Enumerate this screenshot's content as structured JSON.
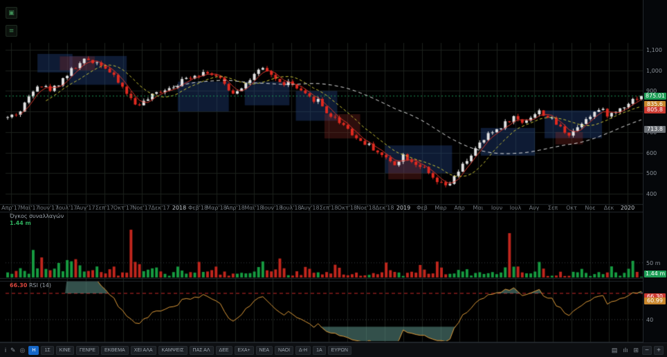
{
  "app": {
    "background": "#000000"
  },
  "price_axis": {
    "ticks": [
      {
        "label": "1,100",
        "price": 1100
      },
      {
        "label": "1,000",
        "price": 1000
      },
      {
        "label": "900",
        "price": 900
      },
      {
        "label": "800",
        "price": 800
      },
      {
        "label": "700",
        "price": 700
      },
      {
        "label": "600",
        "price": 600
      },
      {
        "label": "500",
        "price": 500
      },
      {
        "label": "400",
        "price": 400
      }
    ],
    "badges": [
      {
        "label": "875.01",
        "price": 875.01,
        "color": "#1e9e57"
      },
      {
        "label": "835.6",
        "price": 835.6,
        "color": "#c9872d"
      },
      {
        "label": "805.8",
        "price": 805.8,
        "color": "#cc3b33"
      },
      {
        "label": "713.8",
        "price": 713.8,
        "color": "#6b7076"
      }
    ]
  },
  "time_axis": {
    "labels": [
      "Απρ'17",
      "Μαϊ'17",
      "Ιουν'17",
      "Ιουλ'17",
      "Αυγ'17",
      "Σεπ'17",
      "Οκτ'17",
      "Νοε'17",
      "Δεκ'17",
      "2018",
      "Φεβ'18",
      "Μαρ'18",
      "Απρ'18",
      "Μαϊ'18",
      "Ιουν'18",
      "Ιουλ'18",
      "Αυγ'18",
      "Σεπ'18",
      "Οκτ'18",
      "Νοε'18",
      "Δεκ'18",
      "2019",
      "Φεβ",
      "Μαρ",
      "Απρ",
      "Μαι",
      "Ιουν",
      "Ιουλ",
      "Αυγ",
      "Σεπ",
      "Οκτ",
      "Νοε",
      "Δεκ",
      "2020"
    ],
    "year_labels": [
      "2018",
      "2019",
      "2020"
    ]
  },
  "volume_pane": {
    "label": "Όγκος συναλλαγών",
    "value": "1.44 m",
    "value_color": "#2fae5d",
    "scale_label": "50 m",
    "scale_value": 50,
    "badge": {
      "label": "1.44 m",
      "color": "#1e9e57",
      "value": 1.44
    }
  },
  "rsi_pane": {
    "value": "66.30",
    "label": "RSI (14)",
    "value_color": "#d8453c",
    "lower_tick": {
      "label": "40",
      "value": 40
    },
    "badges": [
      {
        "label": "66.30",
        "color": "#cc3b33",
        "value": 66.3
      },
      {
        "label": "60.99",
        "color": "#c9872d",
        "value": 60.99
      }
    ]
  },
  "top_icons": [
    {
      "name": "logo-icon",
      "glyph": "▣"
    },
    {
      "name": "screenshot-icon",
      "glyph": "≡"
    }
  ],
  "toolbar": {
    "left_icons": [
      {
        "name": "info-icon",
        "glyph": "i"
      },
      {
        "name": "draw-icon",
        "glyph": "✎"
      },
      {
        "name": "target-icon",
        "glyph": "◎"
      }
    ],
    "buttons": [
      {
        "label": "Η",
        "active": true
      },
      {
        "label": "1Σ",
        "active": false
      },
      {
        "label": "ΚΙΝΕ",
        "active": false
      },
      {
        "label": "ΓΕΝΡΕ",
        "active": false
      },
      {
        "label": "ΕΚΘΕΜΑ",
        "active": false
      },
      {
        "label": "ΧΕΙ ΑΛΑ",
        "active": false
      },
      {
        "label": "ΚΑΜΨΕΙΣ",
        "active": false
      },
      {
        "label": "ΠΑΣ ΑΛ",
        "active": false
      },
      {
        "label": "ΔΕΕ",
        "active": false
      },
      {
        "label": "ΕΧΑ+",
        "active": false
      },
      {
        "label": "ΝΕΑ",
        "active": false
      },
      {
        "label": "ΝΑΟΙ",
        "active": false
      },
      {
        "label": "Δ-Η",
        "active": false
      },
      {
        "label": "1Α",
        "active": false
      },
      {
        "label": "ΕΥΡΩΝ",
        "active": false
      }
    ],
    "right_icons": [
      {
        "name": "candlestick-style-icon",
        "glyph": "▤"
      },
      {
        "name": "bar-style-icon",
        "glyph": "ılı"
      },
      {
        "name": "compare-icon",
        "glyph": "⊞"
      }
    ],
    "zoom_out": "−",
    "zoom_in": "+"
  },
  "chart_data": {
    "type": "candlestick",
    "title": "",
    "price_range": [
      400,
      1100
    ],
    "price_gridlines": [
      400,
      500,
      600,
      700,
      800,
      900,
      1000,
      1100
    ],
    "candle_count": 150,
    "last_close": 875.01,
    "noise_seed": 42,
    "noise_amplitude": 13,
    "price_anchors": [
      [
        0,
        770
      ],
      [
        0.02,
        800
      ],
      [
        0.045,
        935
      ],
      [
        0.07,
        905
      ],
      [
        0.1,
        1000
      ],
      [
        0.125,
        1055
      ],
      [
        0.15,
        1030
      ],
      [
        0.165,
        975
      ],
      [
        0.185,
        905
      ],
      [
        0.2,
        835
      ],
      [
        0.215,
        845
      ],
      [
        0.24,
        900
      ],
      [
        0.265,
        930
      ],
      [
        0.29,
        975
      ],
      [
        0.315,
        995
      ],
      [
        0.335,
        955
      ],
      [
        0.355,
        890
      ],
      [
        0.375,
        935
      ],
      [
        0.4,
        1005
      ],
      [
        0.415,
        985
      ],
      [
        0.43,
        935
      ],
      [
        0.445,
        940
      ],
      [
        0.46,
        900
      ],
      [
        0.475,
        865
      ],
      [
        0.49,
        855
      ],
      [
        0.505,
        790
      ],
      [
        0.52,
        760
      ],
      [
        0.535,
        725
      ],
      [
        0.55,
        670
      ],
      [
        0.565,
        645
      ],
      [
        0.58,
        615
      ],
      [
        0.595,
        575
      ],
      [
        0.61,
        545
      ],
      [
        0.625,
        590
      ],
      [
        0.64,
        555
      ],
      [
        0.655,
        530
      ],
      [
        0.665,
        490
      ],
      [
        0.675,
        460
      ],
      [
        0.69,
        435
      ],
      [
        0.7,
        455
      ],
      [
        0.71,
        500
      ],
      [
        0.72,
        545
      ],
      [
        0.73,
        585
      ],
      [
        0.745,
        640
      ],
      [
        0.76,
        690
      ],
      [
        0.775,
        720
      ],
      [
        0.79,
        755
      ],
      [
        0.8,
        775
      ],
      [
        0.81,
        745
      ],
      [
        0.825,
        775
      ],
      [
        0.84,
        800
      ],
      [
        0.85,
        780
      ],
      [
        0.86,
        755
      ],
      [
        0.875,
        715
      ],
      [
        0.885,
        690
      ],
      [
        0.9,
        725
      ],
      [
        0.91,
        765
      ],
      [
        0.925,
        795
      ],
      [
        0.935,
        810
      ],
      [
        0.95,
        780
      ],
      [
        0.96,
        800
      ],
      [
        0.975,
        835
      ],
      [
        0.99,
        865
      ],
      [
        1.0,
        875
      ]
    ],
    "moving_averages": [
      {
        "period": 4,
        "color": "#d6352b",
        "dash": []
      },
      {
        "period": 10,
        "color": "#cfc838",
        "dash": [
          4,
          3
        ]
      },
      {
        "period": 40,
        "color": "#e0e0e0",
        "dash": [
          5,
          4
        ]
      }
    ],
    "zones": {
      "blue": [
        [
          0.05,
          0.105,
          990,
          1080
        ],
        [
          0.1,
          0.19,
          930,
          1070
        ],
        [
          0.27,
          0.35,
          800,
          945
        ],
        [
          0.375,
          0.445,
          830,
          945
        ],
        [
          0.455,
          0.52,
          755,
          900
        ],
        [
          0.595,
          0.7,
          500,
          635
        ],
        [
          0.745,
          0.83,
          585,
          720
        ],
        [
          0.845,
          0.935,
          670,
          805
        ]
      ],
      "red": [
        [
          0.085,
          0.14,
          1000,
          1068
        ],
        [
          0.5,
          0.556,
          669,
          787
        ],
        [
          0.6,
          0.652,
          470,
          565
        ],
        [
          0.862,
          0.905,
          640,
          700
        ]
      ],
      "blue_color": "rgba(38,72,138,0.38)",
      "red_color": "rgba(150,45,40,0.30)"
    },
    "volume": {
      "max": 220,
      "unit": "m",
      "last_value": 1.44,
      "up_color": "#169a40",
      "down_color": "#c0261d",
      "spikes": [
        [
          0.02,
          2.5
        ],
        [
          0.04,
          4
        ],
        [
          0.055,
          5
        ],
        [
          0.075,
          4.5
        ],
        [
          0.09,
          3
        ],
        [
          0.105,
          3.5
        ],
        [
          0.12,
          2.5
        ],
        [
          0.14,
          2
        ],
        [
          0.165,
          2
        ],
        [
          0.195,
          9
        ],
        [
          0.205,
          4
        ],
        [
          0.23,
          2.5
        ],
        [
          0.27,
          2
        ],
        [
          0.3,
          2.5
        ],
        [
          0.33,
          2
        ],
        [
          0.4,
          2
        ],
        [
          0.43,
          2.2
        ],
        [
          0.47,
          1.8
        ],
        [
          0.52,
          1.6
        ],
        [
          0.6,
          1.8
        ],
        [
          0.65,
          2
        ],
        [
          0.68,
          2.2
        ],
        [
          0.72,
          1.8
        ],
        [
          0.79,
          6.5
        ],
        [
          0.8,
          3
        ],
        [
          0.84,
          1.8
        ],
        [
          0.9,
          2
        ],
        [
          0.95,
          1.6
        ],
        [
          0.985,
          2.2
        ]
      ]
    },
    "rsi": {
      "period": 14,
      "upper": 70,
      "lower": 40,
      "oversold": 32,
      "line_color": "#e09c3a",
      "signal_color": "#b8352c",
      "upper_line_color": "#cc2a2a",
      "fill_color": "rgba(102,160,150,0.5)"
    },
    "colors": {
      "up": "#e2e2e2",
      "down": "#e02a20",
      "grid": "#1c221d",
      "bg": "#000000",
      "last_price_line": "#1e9e57"
    }
  }
}
